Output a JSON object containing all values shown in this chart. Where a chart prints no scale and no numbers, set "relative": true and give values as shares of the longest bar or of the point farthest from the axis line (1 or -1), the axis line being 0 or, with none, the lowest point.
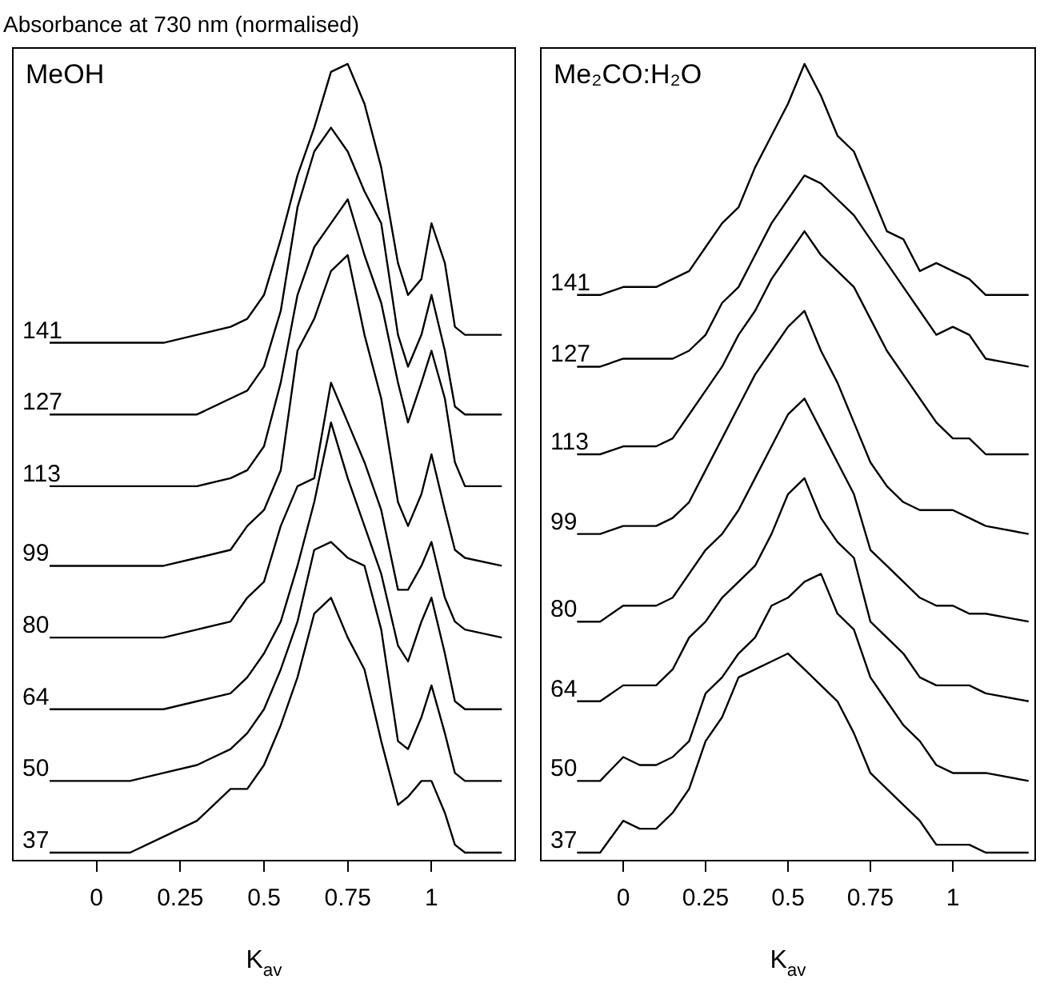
{
  "chart_data": [
    {
      "type": "line",
      "title": "MeOH",
      "ylabel": "Absorbance at 730 nm (normalised)",
      "xlabel": "K$_{av}$",
      "relative": true,
      "marker": "none",
      "xlim": [
        -0.25,
        1.25
      ],
      "xticks": [
        0,
        0.25,
        0.5,
        0.75,
        1
      ],
      "x": [
        -0.14,
        0,
        0.1,
        0.2,
        0.3,
        0.4,
        0.45,
        0.5,
        0.55,
        0.6,
        0.65,
        0.7,
        0.75,
        0.8,
        0.85,
        0.9,
        0.93,
        0.97,
        1.0,
        1.04,
        1.07,
        1.1,
        1.21
      ],
      "series": [
        {
          "name": "141",
          "color": "#000000",
          "values": [
            0.65,
            0.65,
            0.65,
            0.65,
            0.66,
            0.67,
            0.68,
            0.71,
            0.78,
            0.86,
            0.92,
            0.99,
            1.0,
            0.95,
            0.87,
            0.75,
            0.71,
            0.73,
            0.8,
            0.75,
            0.67,
            0.66,
            0.66
          ]
        },
        {
          "name": "127",
          "color": "#000000",
          "values": [
            0.56,
            0.56,
            0.56,
            0.56,
            0.56,
            0.58,
            0.59,
            0.62,
            0.69,
            0.82,
            0.89,
            0.92,
            0.89,
            0.84,
            0.8,
            0.66,
            0.62,
            0.66,
            0.71,
            0.64,
            0.57,
            0.56,
            0.56
          ]
        },
        {
          "name": "113",
          "color": "#000000",
          "values": [
            0.47,
            0.47,
            0.47,
            0.47,
            0.47,
            0.48,
            0.49,
            0.52,
            0.6,
            0.71,
            0.77,
            0.8,
            0.83,
            0.76,
            0.7,
            0.6,
            0.55,
            0.6,
            0.64,
            0.58,
            0.5,
            0.47,
            0.47
          ]
        },
        {
          "name": "99",
          "color": "#000000",
          "values": [
            0.37,
            0.37,
            0.37,
            0.37,
            0.38,
            0.39,
            0.42,
            0.44,
            0.49,
            0.64,
            0.68,
            0.74,
            0.76,
            0.66,
            0.58,
            0.45,
            0.42,
            0.46,
            0.51,
            0.44,
            0.39,
            0.38,
            0.37
          ]
        },
        {
          "name": "80",
          "color": "#000000",
          "values": [
            0.28,
            0.28,
            0.28,
            0.28,
            0.29,
            0.3,
            0.33,
            0.35,
            0.42,
            0.47,
            0.48,
            0.6,
            0.55,
            0.5,
            0.44,
            0.34,
            0.34,
            0.37,
            0.4,
            0.33,
            0.3,
            0.29,
            0.28
          ]
        },
        {
          "name": "64",
          "color": "#000000",
          "values": [
            0.19,
            0.19,
            0.19,
            0.19,
            0.2,
            0.21,
            0.23,
            0.26,
            0.3,
            0.37,
            0.45,
            0.55,
            0.48,
            0.42,
            0.36,
            0.27,
            0.25,
            0.3,
            0.33,
            0.26,
            0.2,
            0.19,
            0.19
          ]
        },
        {
          "name": "50",
          "color": "#000000",
          "values": [
            0.1,
            0.1,
            0.1,
            0.11,
            0.12,
            0.14,
            0.16,
            0.19,
            0.24,
            0.3,
            0.39,
            0.4,
            0.38,
            0.37,
            0.29,
            0.15,
            0.14,
            0.18,
            0.22,
            0.16,
            0.11,
            0.1,
            0.1
          ]
        },
        {
          "name": "37",
          "color": "#000000",
          "values": [
            0.01,
            0.01,
            0.01,
            0.03,
            0.05,
            0.09,
            0.09,
            0.12,
            0.17,
            0.23,
            0.31,
            0.33,
            0.28,
            0.24,
            0.15,
            0.07,
            0.08,
            0.1,
            0.1,
            0.06,
            0.02,
            0.01,
            0.01
          ]
        }
      ]
    },
    {
      "type": "line",
      "title": "Me₂CO:H₂O",
      "xlabel": "K$_{av}$",
      "relative": true,
      "marker": "none",
      "xlim": [
        -0.25,
        1.25
      ],
      "xticks": [
        0,
        0.25,
        0.5,
        0.75,
        1
      ],
      "x": [
        -0.14,
        -0.07,
        0,
        0.05,
        0.1,
        0.15,
        0.2,
        0.25,
        0.3,
        0.35,
        0.4,
        0.45,
        0.5,
        0.55,
        0.6,
        0.65,
        0.7,
        0.75,
        0.8,
        0.85,
        0.9,
        0.95,
        1.0,
        1.05,
        1.1,
        1.23
      ],
      "series": [
        {
          "name": "141",
          "color": "#000000",
          "values": [
            0.71,
            0.71,
            0.72,
            0.72,
            0.72,
            0.73,
            0.74,
            0.77,
            0.8,
            0.82,
            0.87,
            0.91,
            0.95,
            1.0,
            0.96,
            0.91,
            0.89,
            0.84,
            0.79,
            0.78,
            0.74,
            0.75,
            0.74,
            0.73,
            0.71,
            0.71
          ]
        },
        {
          "name": "127",
          "color": "#000000",
          "values": [
            0.62,
            0.62,
            0.63,
            0.63,
            0.63,
            0.63,
            0.64,
            0.66,
            0.7,
            0.72,
            0.76,
            0.8,
            0.83,
            0.86,
            0.85,
            0.83,
            0.81,
            0.78,
            0.75,
            0.72,
            0.69,
            0.66,
            0.67,
            0.66,
            0.63,
            0.62
          ]
        },
        {
          "name": "113",
          "color": "#000000",
          "values": [
            0.51,
            0.51,
            0.52,
            0.52,
            0.52,
            0.53,
            0.56,
            0.59,
            0.62,
            0.66,
            0.69,
            0.73,
            0.76,
            0.79,
            0.76,
            0.74,
            0.72,
            0.68,
            0.64,
            0.61,
            0.58,
            0.55,
            0.53,
            0.53,
            0.51,
            0.51
          ]
        },
        {
          "name": "99",
          "color": "#000000",
          "values": [
            0.41,
            0.41,
            0.42,
            0.42,
            0.42,
            0.43,
            0.45,
            0.49,
            0.53,
            0.57,
            0.61,
            0.64,
            0.67,
            0.69,
            0.64,
            0.6,
            0.55,
            0.5,
            0.47,
            0.45,
            0.44,
            0.44,
            0.44,
            0.43,
            0.42,
            0.41
          ]
        },
        {
          "name": "80",
          "color": "#000000",
          "values": [
            0.3,
            0.3,
            0.32,
            0.32,
            0.32,
            0.33,
            0.36,
            0.39,
            0.41,
            0.44,
            0.48,
            0.52,
            0.56,
            0.58,
            0.54,
            0.5,
            0.46,
            0.39,
            0.37,
            0.35,
            0.33,
            0.32,
            0.32,
            0.31,
            0.31,
            0.3
          ]
        },
        {
          "name": "64",
          "color": "#000000",
          "values": [
            0.2,
            0.2,
            0.22,
            0.22,
            0.22,
            0.24,
            0.28,
            0.3,
            0.33,
            0.35,
            0.37,
            0.41,
            0.46,
            0.48,
            0.43,
            0.4,
            0.38,
            0.3,
            0.28,
            0.26,
            0.23,
            0.22,
            0.22,
            0.22,
            0.21,
            0.2
          ]
        },
        {
          "name": "50",
          "color": "#000000",
          "values": [
            0.1,
            0.1,
            0.13,
            0.12,
            0.12,
            0.13,
            0.15,
            0.21,
            0.23,
            0.26,
            0.28,
            0.32,
            0.33,
            0.35,
            0.36,
            0.31,
            0.29,
            0.23,
            0.2,
            0.17,
            0.15,
            0.12,
            0.11,
            0.11,
            0.11,
            0.1
          ]
        },
        {
          "name": "37",
          "color": "#000000",
          "values": [
            0.01,
            0.01,
            0.05,
            0.04,
            0.04,
            0.06,
            0.09,
            0.15,
            0.18,
            0.23,
            0.24,
            0.25,
            0.26,
            0.24,
            0.22,
            0.2,
            0.16,
            0.11,
            0.09,
            0.07,
            0.05,
            0.02,
            0.02,
            0.02,
            0.01,
            0.01
          ]
        }
      ]
    }
  ]
}
